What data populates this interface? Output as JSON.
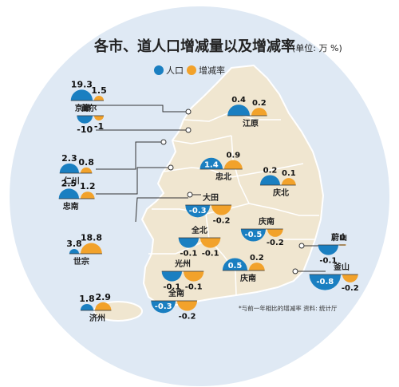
{
  "title": "各市、道人口增减量以及增减率",
  "unit": "(单位: 万 %)",
  "legend": {
    "population": "人口",
    "rate": "增减率"
  },
  "footnote": "*与前一年相比的增减率  资料: 统计厅",
  "colors": {
    "population": "#1a7fc1",
    "rate": "#f2a22b",
    "map": "#f0e6d0",
    "ocean": "#dfe9f4",
    "text": "#222222"
  },
  "chart_data": {
    "type": "bar",
    "title": "各市、道人口增减量以及增减率",
    "unit": "(单位: 万 %)",
    "series_names": [
      "人口",
      "增减率"
    ],
    "regions": [
      {
        "name": "京畿",
        "population": 19.3,
        "rate": 1.5
      },
      {
        "name": "首尔",
        "population": -10,
        "rate": -1
      },
      {
        "name": "仁川",
        "population": 2.3,
        "rate": 0.8
      },
      {
        "name": "忠南",
        "population": 2.5,
        "rate": 1.2
      },
      {
        "name": "世宗",
        "population": 3.8,
        "rate": 18.8
      },
      {
        "name": "济州",
        "population": 1.8,
        "rate": 2.9
      },
      {
        "name": "江原",
        "population": 0.4,
        "rate": 0.2
      },
      {
        "name": "忠北",
        "population": 1.4,
        "rate": 0.9
      },
      {
        "name": "庆北",
        "population": 0.2,
        "rate": 0.1
      },
      {
        "name": "大田",
        "population": -0.3,
        "rate": -0.2
      },
      {
        "name": "庆南",
        "population": -0.5,
        "rate": -0.2
      },
      {
        "name": "全北",
        "population": -0.1,
        "rate": -0.1
      },
      {
        "name": "蔚山",
        "population": -0.1,
        "rate": 0
      },
      {
        "name": "光州",
        "population": -0.1,
        "rate": -0.1
      },
      {
        "name": "庆南",
        "population": 0.5,
        "rate": 0.2
      },
      {
        "name": "釜山",
        "population": -0.8,
        "rate": -0.2
      },
      {
        "name": "全南",
        "population": -0.3,
        "rate": -0.2
      }
    ]
  }
}
